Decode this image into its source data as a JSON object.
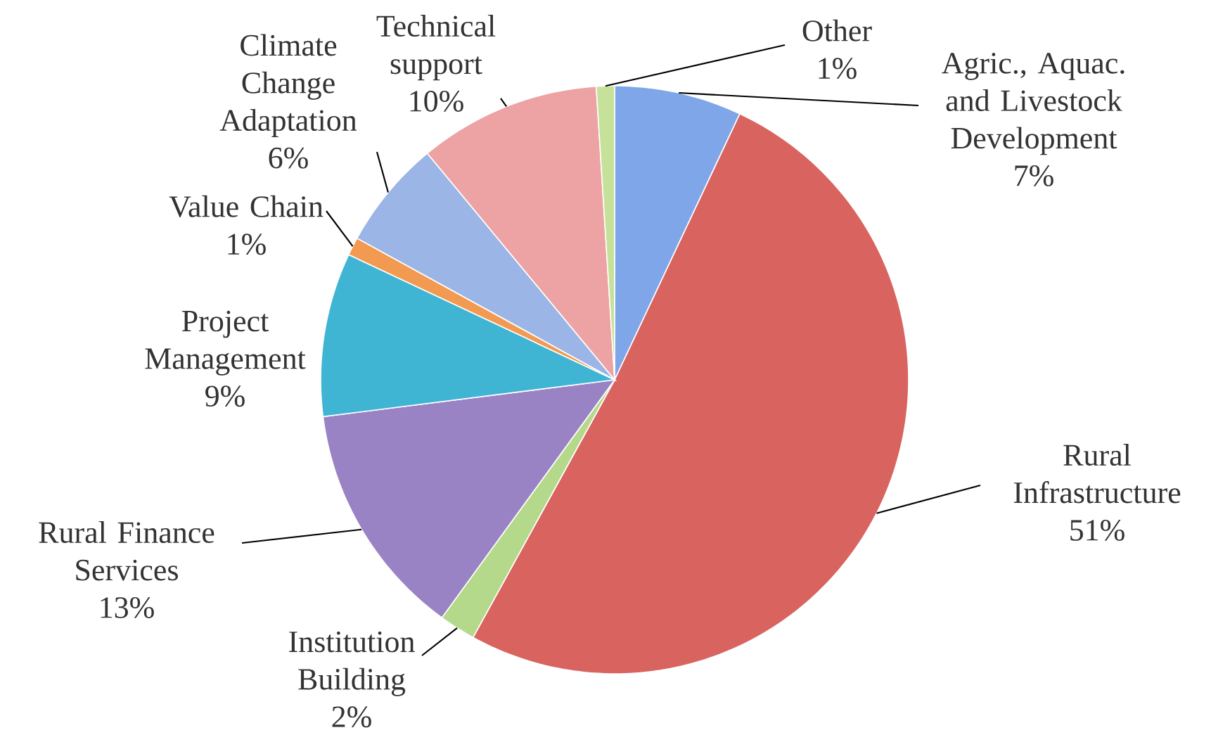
{
  "chart_data": {
    "type": "pie",
    "categories": [
      "Agric., Aquac. and Livestock Development",
      "Rural Infrastructure",
      "Institution Building",
      "Rural Finance Services",
      "Project Management",
      "Value Chain",
      "Climate Change Adaptation",
      "Technical support",
      "Other"
    ],
    "values": [
      7,
      51,
      2,
      13,
      9,
      1,
      6,
      10,
      1
    ],
    "value_labels": [
      "7%",
      "51%",
      "2%",
      "13%",
      "9%",
      "1%",
      "6%",
      "10%",
      "1%"
    ],
    "colors": [
      "#7ea6e8",
      "#d9635f",
      "#b5d98a",
      "#9a83c4",
      "#3fb5d3",
      "#f29a52",
      "#9bb5e6",
      "#eda3a3",
      "#c6e29a"
    ]
  }
}
